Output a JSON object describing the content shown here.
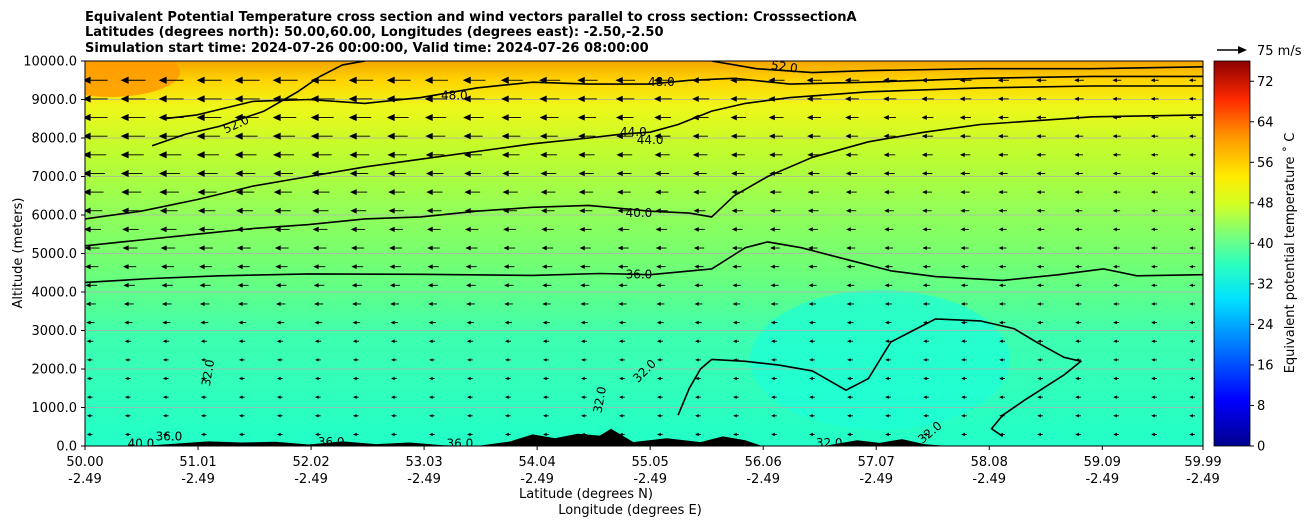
{
  "chart_data": {
    "type": "contour",
    "title": [
      "Equivalent Potential Temperature cross section and wind vectors parallel to cross section: CrosssectionA",
      "Latitudes (degrees north): 50.00,60.00, Longitudes (degrees east): -2.50,-2.50",
      "Simulation start time: 2024-07-26 00:00:00, Valid time: 2024-07-26 08:00:00"
    ],
    "xlabel": "Latitude (degrees N)",
    "xlabel2": "Longitude (degrees E)",
    "ylabel": "Altitude (meters)",
    "xlim": [
      50.0,
      59.99
    ],
    "ylim": [
      0,
      10000
    ],
    "x_ticks": [
      {
        "lat": "50.00",
        "lon": "-2.49",
        "v": 50.0
      },
      {
        "lat": "51.01",
        "lon": "-2.49",
        "v": 51.01
      },
      {
        "lat": "52.02",
        "lon": "-2.49",
        "v": 52.02
      },
      {
        "lat": "53.03",
        "lon": "-2.49",
        "v": 53.03
      },
      {
        "lat": "54.04",
        "lon": "-2.49",
        "v": 54.04
      },
      {
        "lat": "55.05",
        "lon": "-2.49",
        "v": 55.05
      },
      {
        "lat": "56.06",
        "lon": "-2.49",
        "v": 56.06
      },
      {
        "lat": "57.07",
        "lon": "-2.49",
        "v": 57.07
      },
      {
        "lat": "58.08",
        "lon": "-2.49",
        "v": 58.08
      },
      {
        "lat": "59.09",
        "lon": "-2.49",
        "v": 59.09
      },
      {
        "lat": "59.99",
        "lon": "-2.49",
        "v": 59.99
      }
    ],
    "y_ticks": [
      {
        "label": "0.0",
        "v": 0
      },
      {
        "label": "1000.0",
        "v": 1000
      },
      {
        "label": "2000.0",
        "v": 2000
      },
      {
        "label": "3000.0",
        "v": 3000
      },
      {
        "label": "4000.0",
        "v": 4000
      },
      {
        "label": "5000.0",
        "v": 5000
      },
      {
        "label": "6000.0",
        "v": 6000
      },
      {
        "label": "7000.0",
        "v": 7000
      },
      {
        "label": "8000.0",
        "v": 8000
      },
      {
        "label": "9000.0",
        "v": 9000
      },
      {
        "label": "10000.0",
        "v": 10000
      }
    ],
    "colorbar": {
      "label": "Equivalent potential temperature ˚ C",
      "range": [
        0,
        76
      ],
      "ticks": [
        "0",
        "8",
        "16",
        "24",
        "32",
        "40",
        "48",
        "56",
        "64",
        "72"
      ],
      "tick_values": [
        0,
        8,
        16,
        24,
        32,
        40,
        48,
        56,
        64,
        72
      ]
    },
    "quiver_key": {
      "label": "75 m/s"
    },
    "contours": [
      {
        "level": 36,
        "label": "36.0",
        "points": [
          [
            50.0,
            4250
          ],
          [
            50.6,
            4350
          ],
          [
            51.2,
            4420
          ],
          [
            52.0,
            4470
          ],
          [
            53.0,
            4460
          ],
          [
            54.0,
            4430
          ],
          [
            54.6,
            4480
          ],
          [
            55.05,
            4450
          ],
          [
            55.6,
            4600
          ],
          [
            55.9,
            5150
          ],
          [
            56.1,
            5300
          ],
          [
            56.4,
            5150
          ],
          [
            56.8,
            4850
          ],
          [
            57.2,
            4550
          ],
          [
            57.6,
            4400
          ],
          [
            58.2,
            4300
          ],
          [
            58.7,
            4450
          ],
          [
            59.1,
            4600
          ],
          [
            59.4,
            4420
          ],
          [
            59.99,
            4450
          ]
        ]
      },
      {
        "level": 40,
        "label": "40.0",
        "points": [
          [
            50.0,
            5200
          ],
          [
            50.5,
            5350
          ],
          [
            51.0,
            5500
          ],
          [
            51.5,
            5650
          ],
          [
            52.0,
            5750
          ],
          [
            52.5,
            5900
          ],
          [
            53.0,
            5950
          ],
          [
            53.5,
            6100
          ],
          [
            54.0,
            6200
          ],
          [
            54.5,
            6250
          ],
          [
            55.05,
            6100
          ],
          [
            55.4,
            6050
          ],
          [
            55.6,
            5950
          ],
          [
            55.8,
            6500
          ],
          [
            56.1,
            7000
          ],
          [
            56.5,
            7500
          ],
          [
            57.0,
            7900
          ],
          [
            57.5,
            8150
          ],
          [
            58.0,
            8350
          ],
          [
            58.5,
            8450
          ],
          [
            59.0,
            8550
          ],
          [
            59.99,
            8600
          ]
        ]
      },
      {
        "level": 44,
        "label": "44.0",
        "points": [
          [
            50.0,
            5900
          ],
          [
            50.5,
            6100
          ],
          [
            51.0,
            6400
          ],
          [
            51.5,
            6750
          ],
          [
            52.0,
            7000
          ],
          [
            52.5,
            7250
          ],
          [
            53.0,
            7450
          ],
          [
            53.5,
            7650
          ],
          [
            54.0,
            7850
          ],
          [
            54.5,
            8000
          ],
          [
            54.8,
            8100
          ],
          [
            55.05,
            8150
          ],
          [
            55.3,
            8350
          ],
          [
            55.6,
            8700
          ],
          [
            55.9,
            8900
          ],
          [
            56.3,
            9050
          ],
          [
            57.0,
            9200
          ],
          [
            58.0,
            9300
          ],
          [
            59.0,
            9350
          ],
          [
            59.99,
            9350
          ]
        ]
      },
      {
        "level": 48,
        "label": "48.0",
        "points": [
          [
            50.7,
            8500
          ],
          [
            51.0,
            8600
          ],
          [
            51.5,
            8950
          ],
          [
            52.0,
            9000
          ],
          [
            52.5,
            8900
          ],
          [
            53.0,
            9050
          ],
          [
            53.5,
            9300
          ],
          [
            54.0,
            9450
          ],
          [
            54.5,
            9400
          ],
          [
            55.05,
            9400
          ],
          [
            55.4,
            9500
          ],
          [
            55.8,
            9550
          ],
          [
            56.3,
            9400
          ],
          [
            57.0,
            9450
          ],
          [
            58.0,
            9550
          ],
          [
            59.0,
            9600
          ],
          [
            59.99,
            9600
          ]
        ]
      },
      {
        "level": 52,
        "label": "52.0",
        "points": [
          [
            50.6,
            7800
          ],
          [
            50.9,
            8100
          ],
          [
            51.2,
            8300
          ],
          [
            51.6,
            8700
          ],
          [
            51.9,
            9200
          ],
          [
            52.1,
            9600
          ],
          [
            52.3,
            9900
          ],
          [
            52.5,
            10000
          ]
        ]
      },
      {
        "level": 52,
        "label": "52.0",
        "points": [
          [
            55.6,
            10000
          ],
          [
            56.0,
            9800
          ],
          [
            56.5,
            9700
          ],
          [
            57.0,
            9750
          ],
          [
            58.0,
            9800
          ],
          [
            59.0,
            9800
          ],
          [
            59.99,
            9850
          ]
        ]
      },
      {
        "level": 32,
        "label": "32.0",
        "points": [
          [
            55.3,
            800
          ],
          [
            55.4,
            1500
          ],
          [
            55.5,
            2000
          ],
          [
            55.6,
            2250
          ],
          [
            55.9,
            2200
          ],
          [
            56.2,
            2100
          ],
          [
            56.5,
            1950
          ],
          [
            56.8,
            1450
          ],
          [
            57.0,
            1750
          ],
          [
            57.2,
            2700
          ],
          [
            57.4,
            3000
          ],
          [
            57.6,
            3300
          ],
          [
            58.0,
            3250
          ],
          [
            58.3,
            3050
          ],
          [
            58.5,
            2700
          ],
          [
            58.75,
            2300
          ],
          [
            58.9,
            2200
          ],
          [
            58.75,
            1850
          ],
          [
            58.4,
            1200
          ],
          [
            58.2,
            800
          ],
          [
            58.1,
            450
          ],
          [
            58.2,
            250
          ]
        ]
      }
    ],
    "inline_labels": [
      {
        "text": "52.0",
        "lat": 51.35,
        "alt": 8350,
        "rot": -25
      },
      {
        "text": "48.0",
        "lat": 53.3,
        "alt": 9100,
        "rot": 0
      },
      {
        "text": "48.0",
        "lat": 55.15,
        "alt": 9450,
        "rot": 0
      },
      {
        "text": "52.0",
        "lat": 56.25,
        "alt": 9850,
        "rot": 8
      },
      {
        "text": "44.0",
        "lat": 54.9,
        "alt": 8150,
        "rot": 0
      },
      {
        "text": "44.0",
        "lat": 55.05,
        "alt": 7950,
        "rot": 0
      },
      {
        "text": "40.0",
        "lat": 54.95,
        "alt": 6050,
        "rot": 0
      },
      {
        "text": "36.0",
        "lat": 54.95,
        "alt": 4450,
        "rot": 0
      },
      {
        "text": "32.0",
        "lat": 51.1,
        "alt": 1900,
        "rot": -80
      },
      {
        "text": "32.0",
        "lat": 54.6,
        "alt": 1200,
        "rot": -80
      },
      {
        "text": "32.0",
        "lat": 55.0,
        "alt": 1950,
        "rot": -45
      },
      {
        "text": "32.0",
        "lat": 57.55,
        "alt": 350,
        "rot": -40
      },
      {
        "text": "32.0",
        "lat": 56.65,
        "alt": 80,
        "rot": 0
      },
      {
        "text": "36.0",
        "lat": 50.75,
        "alt": 250,
        "rot": 0
      },
      {
        "text": "40.0",
        "lat": 50.5,
        "alt": 60,
        "rot": 0
      },
      {
        "text": "36.0",
        "lat": 53.35,
        "alt": 60,
        "rot": 0
      },
      {
        "text": "36.0",
        "lat": 52.2,
        "alt": 100,
        "rot": 0
      }
    ],
    "terrain": [
      [
        50.0,
        0
      ],
      [
        50.5,
        0
      ],
      [
        50.8,
        60
      ],
      [
        51.1,
        120
      ],
      [
        51.4,
        90
      ],
      [
        51.7,
        110
      ],
      [
        52.0,
        40
      ],
      [
        52.3,
        120
      ],
      [
        52.6,
        50
      ],
      [
        52.9,
        90
      ],
      [
        53.2,
        20
      ],
      [
        53.5,
        0
      ],
      [
        53.8,
        120
      ],
      [
        54.0,
        300
      ],
      [
        54.2,
        200
      ],
      [
        54.4,
        320
      ],
      [
        54.6,
        270
      ],
      [
        54.7,
        450
      ],
      [
        54.9,
        100
      ],
      [
        55.2,
        200
      ],
      [
        55.5,
        100
      ],
      [
        55.7,
        250
      ],
      [
        55.9,
        150
      ],
      [
        56.05,
        0
      ],
      [
        56.6,
        0
      ],
      [
        56.9,
        150
      ],
      [
        57.1,
        80
      ],
      [
        57.3,
        180
      ],
      [
        57.5,
        50
      ],
      [
        57.7,
        0
      ],
      [
        59.99,
        0
      ]
    ]
  }
}
